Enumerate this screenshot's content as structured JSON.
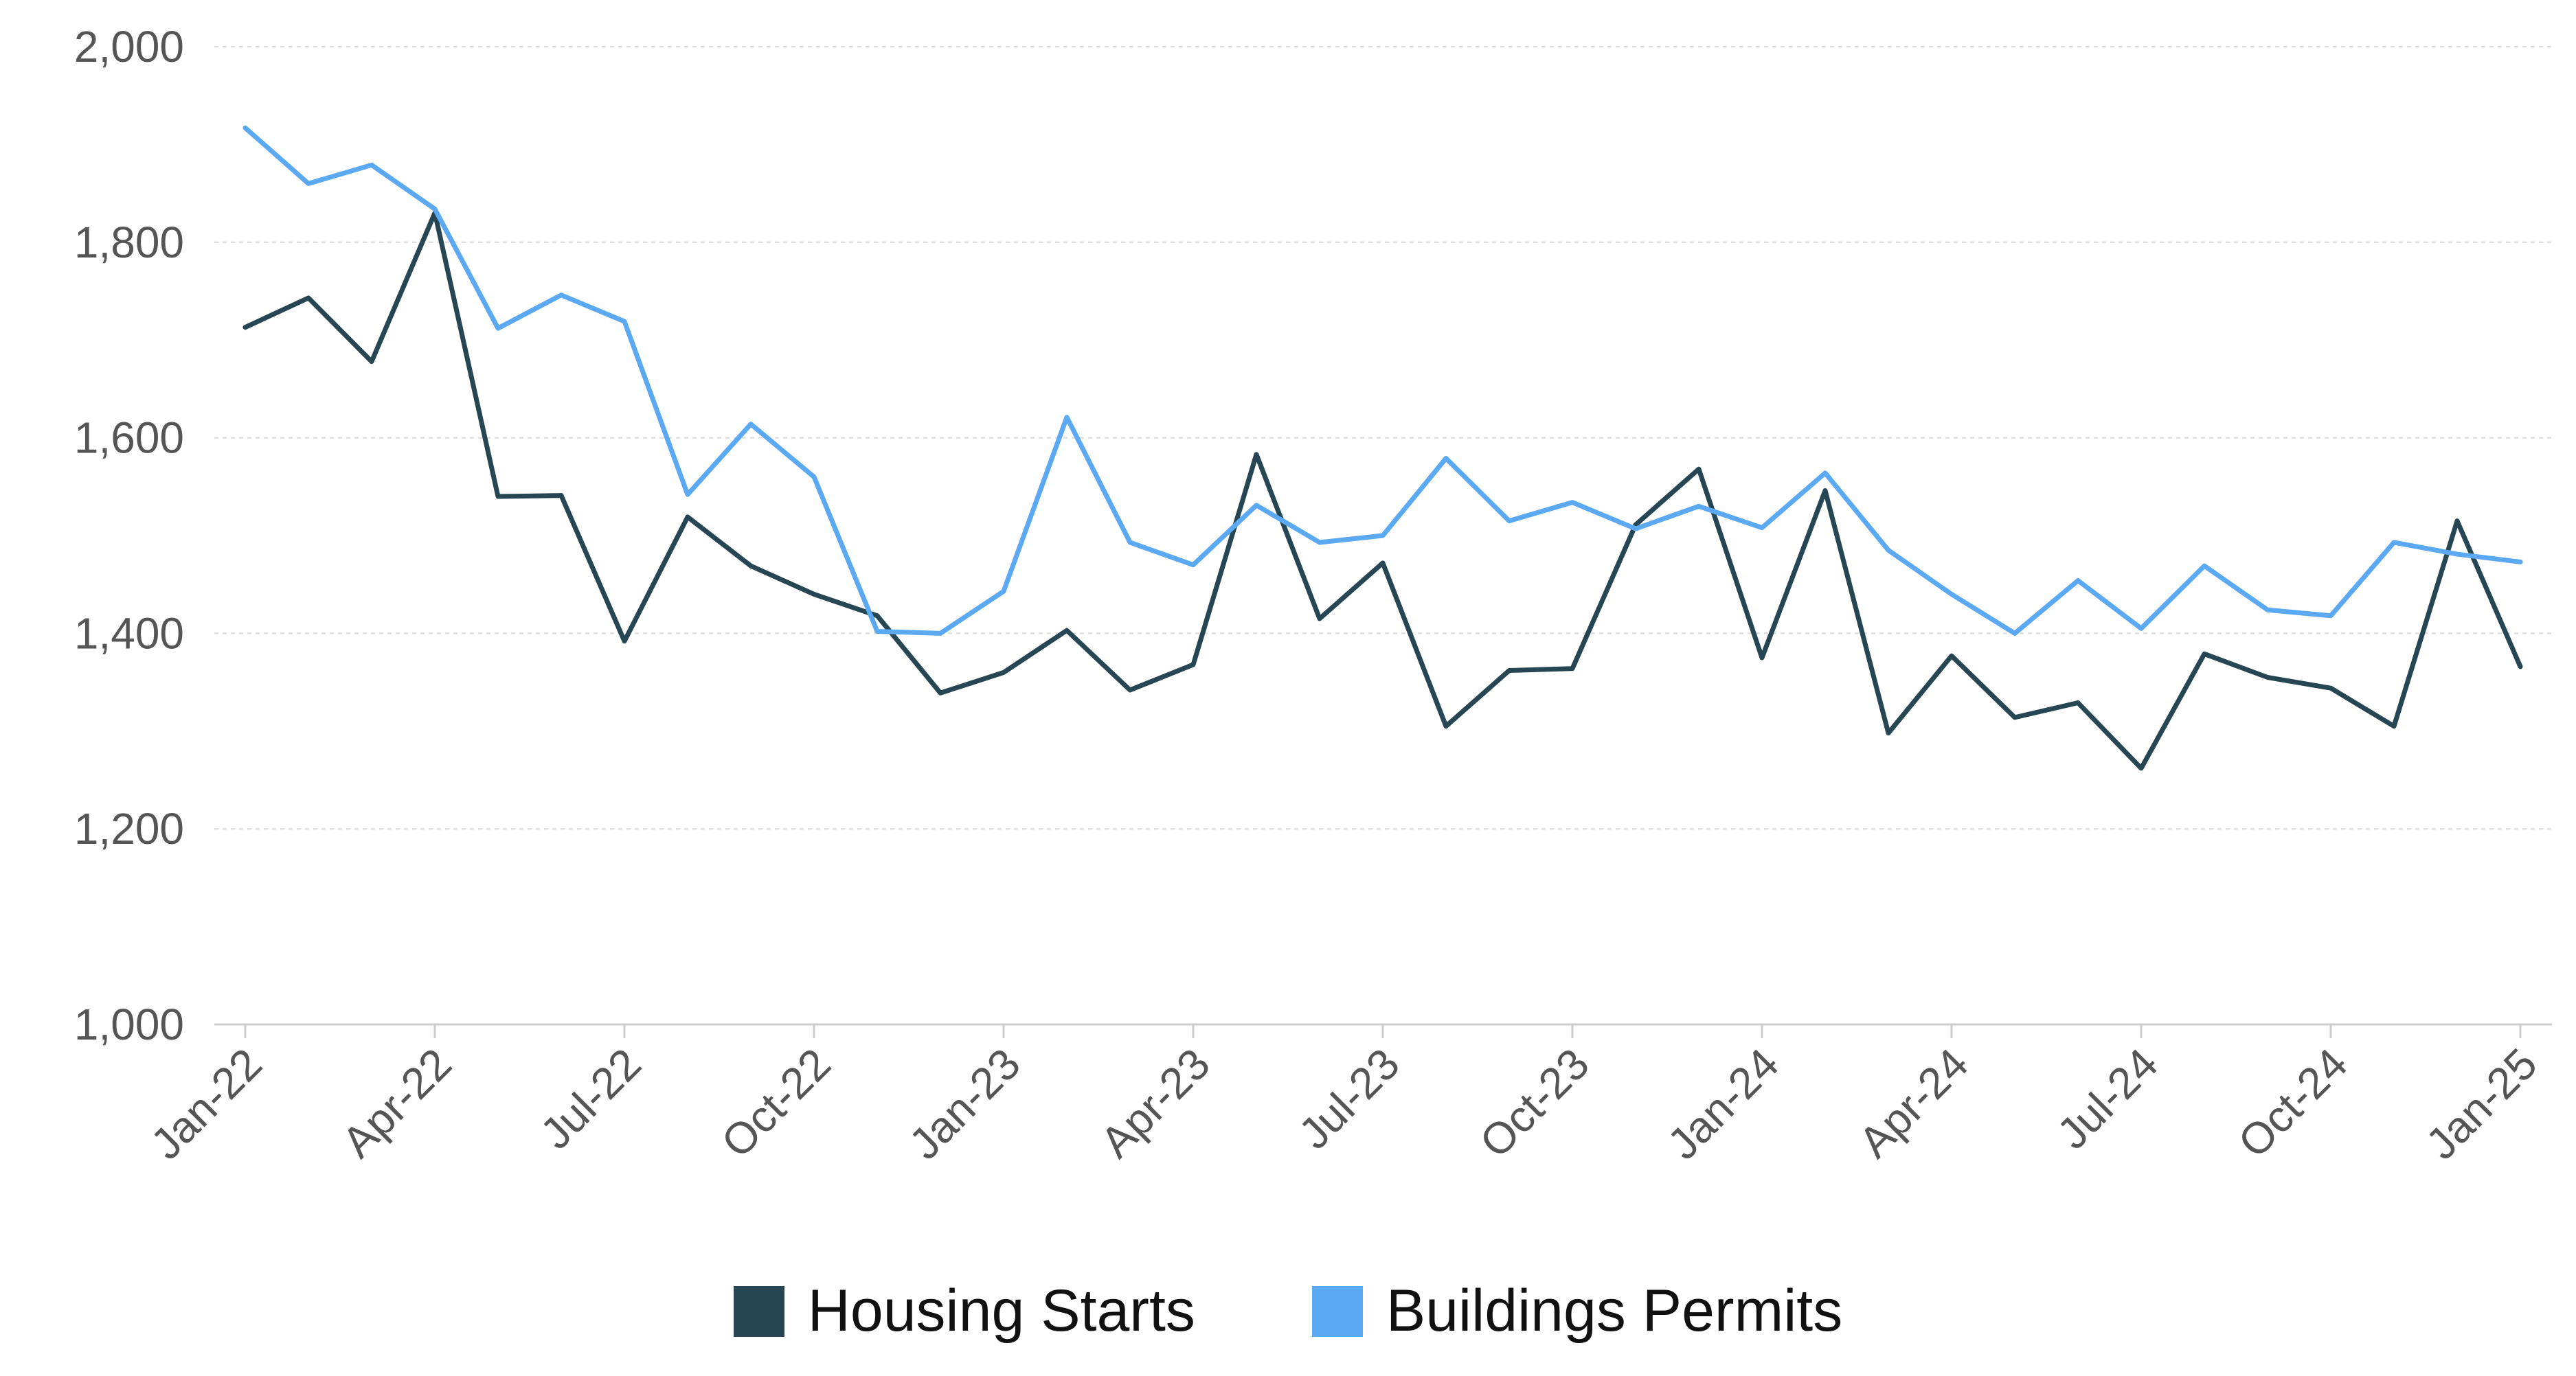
{
  "chart_data": {
    "type": "line",
    "title": "",
    "xlabel": "",
    "ylabel": "",
    "ylim": [
      1000,
      2000
    ],
    "yticks": [
      1000,
      1200,
      1400,
      1600,
      1800,
      2000
    ],
    "ytick_labels": [
      "1,000",
      "1,200",
      "1,400",
      "1,600",
      "1,800",
      "2,000"
    ],
    "x": [
      "Jan-22",
      "Feb-22",
      "Mar-22",
      "Apr-22",
      "May-22",
      "Jun-22",
      "Jul-22",
      "Aug-22",
      "Sep-22",
      "Oct-22",
      "Nov-22",
      "Dec-22",
      "Jan-23",
      "Feb-23",
      "Mar-23",
      "Apr-23",
      "May-23",
      "Jun-23",
      "Jul-23",
      "Aug-23",
      "Sep-23",
      "Oct-23",
      "Nov-23",
      "Dec-23",
      "Jan-24",
      "Feb-24",
      "Mar-24",
      "Apr-24",
      "May-24",
      "Jun-24",
      "Jul-24",
      "Aug-24",
      "Sep-24",
      "Oct-24",
      "Nov-24",
      "Dec-24",
      "Jan-25"
    ],
    "xtick_labels": [
      "Jan-22",
      "Apr-22",
      "Jul-22",
      "Oct-22",
      "Jan-23",
      "Apr-23",
      "Jul-23",
      "Oct-23",
      "Jan-24",
      "Apr-24",
      "Jul-24",
      "Oct-24",
      "Jan-25"
    ],
    "grid": true,
    "legend_position": "bottom-center",
    "series": [
      {
        "name": "Housing Starts",
        "color": "#264653",
        "values": [
          1713,
          1743,
          1678,
          1830,
          1540,
          1541,
          1392,
          1519,
          1469,
          1440,
          1418,
          1339,
          1360,
          1403,
          1342,
          1368,
          1583,
          1415,
          1472,
          1305,
          1362,
          1364,
          1511,
          1568,
          1375,
          1546,
          1298,
          1377,
          1314,
          1329,
          1262,
          1379,
          1355,
          1344,
          1305,
          1515,
          1366
        ]
      },
      {
        "name": "Buildings Permits",
        "color": "#5aa9f2",
        "values": [
          1917,
          1860,
          1879,
          1834,
          1712,
          1746,
          1719,
          1542,
          1614,
          1560,
          1402,
          1400,
          1443,
          1621,
          1493,
          1470,
          1531,
          1493,
          1500,
          1579,
          1515,
          1534,
          1507,
          1530,
          1508,
          1564,
          1485,
          1440,
          1400,
          1454,
          1405,
          1469,
          1424,
          1418,
          1493,
          1481,
          1473
        ]
      }
    ]
  }
}
